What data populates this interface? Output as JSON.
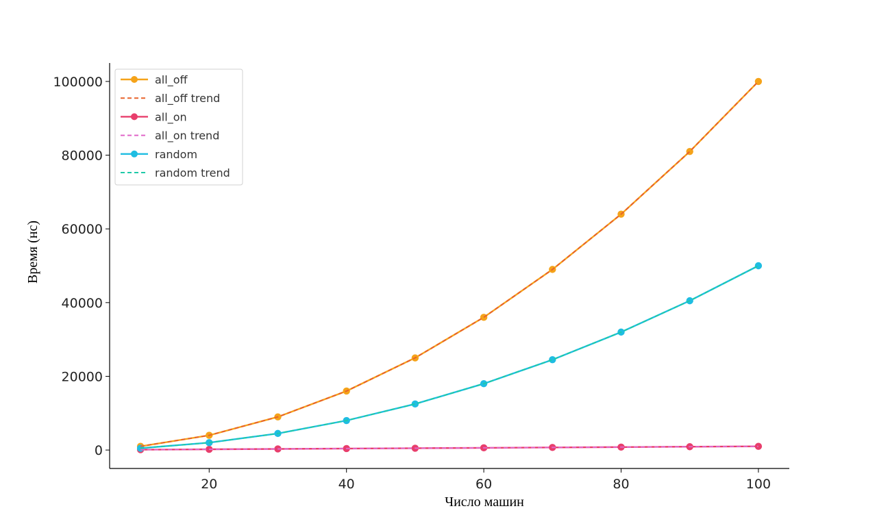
{
  "chart_data": {
    "type": "line",
    "xlabel": "Число машин",
    "ylabel": "Время (нс)",
    "xlim": [
      5.5,
      104.5
    ],
    "ylim": [
      -5000,
      105000
    ],
    "x_ticks": [
      "20",
      "40",
      "60",
      "80",
      "100"
    ],
    "y_ticks": [
      "0",
      "20000",
      "40000",
      "60000",
      "80000",
      "100000"
    ],
    "grid": false,
    "legend_position": "top-left",
    "x": [
      10,
      20,
      30,
      40,
      50,
      60,
      70,
      80,
      90,
      100
    ],
    "series": [
      {
        "name": "all_off",
        "style": "solid-marker",
        "color": "#f5a31a",
        "values": [
          1000,
          4000,
          9000,
          16000,
          25000,
          36000,
          49000,
          64000,
          81000,
          100000
        ]
      },
      {
        "name": "all_off trend",
        "style": "dashed",
        "color": "#e8632b",
        "values": [
          1000,
          4000,
          9000,
          16000,
          25000,
          36000,
          49000,
          64000,
          81000,
          100000
        ]
      },
      {
        "name": "all_on",
        "style": "solid-marker",
        "color": "#e83e6c",
        "values": [
          100,
          200,
          300,
          400,
          500,
          600,
          700,
          800,
          900,
          1000
        ]
      },
      {
        "name": "all_on trend",
        "style": "dashed",
        "color": "#e066c8",
        "values": [
          100,
          200,
          300,
          400,
          500,
          600,
          700,
          800,
          900,
          1000
        ]
      },
      {
        "name": "random",
        "style": "solid-marker",
        "color": "#1fbde2",
        "values": [
          500,
          2000,
          4500,
          8000,
          12500,
          18000,
          24500,
          32000,
          40500,
          50000
        ]
      },
      {
        "name": "random trend",
        "style": "dashed",
        "color": "#1ec9a8",
        "values": [
          500,
          2000,
          4500,
          8000,
          12500,
          18000,
          24500,
          32000,
          40500,
          50000
        ]
      }
    ]
  }
}
